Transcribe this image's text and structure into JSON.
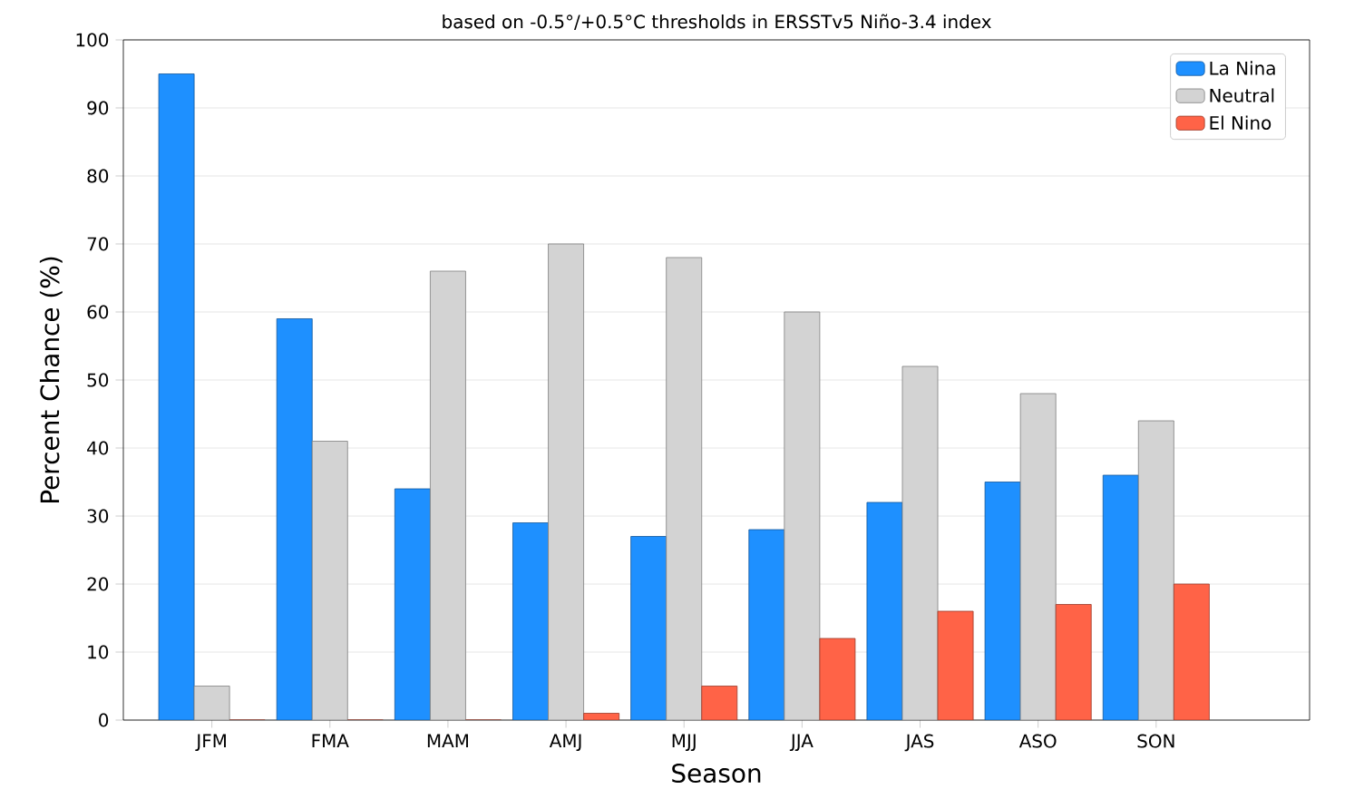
{
  "chart_data": {
    "type": "bar",
    "title": "based on -0.5°/+0.5°C thresholds in ERSSTv5 Niño-3.4 index",
    "xlabel": "Season",
    "ylabel": "Percent Chance (%)",
    "categories": [
      "JFM",
      "FMA",
      "MAM",
      "AMJ",
      "MJJ",
      "JJA",
      "JAS",
      "ASO",
      "SON"
    ],
    "series": [
      {
        "name": "La Nina",
        "color": "#1e90ff",
        "values": [
          95,
          59,
          34,
          29,
          27,
          28,
          32,
          35,
          36
        ]
      },
      {
        "name": "Neutral",
        "color": "#d3d3d3",
        "values": [
          5,
          41,
          66,
          70,
          68,
          60,
          52,
          48,
          44
        ]
      },
      {
        "name": "El Nino",
        "color": "#ff6347",
        "values": [
          0,
          0,
          0,
          1,
          5,
          12,
          16,
          17,
          20
        ]
      }
    ],
    "ylim": [
      0,
      100
    ],
    "yticks": [
      0,
      10,
      20,
      30,
      40,
      50,
      60,
      70,
      80,
      90,
      100
    ],
    "grid": "y",
    "legend": "top right"
  }
}
